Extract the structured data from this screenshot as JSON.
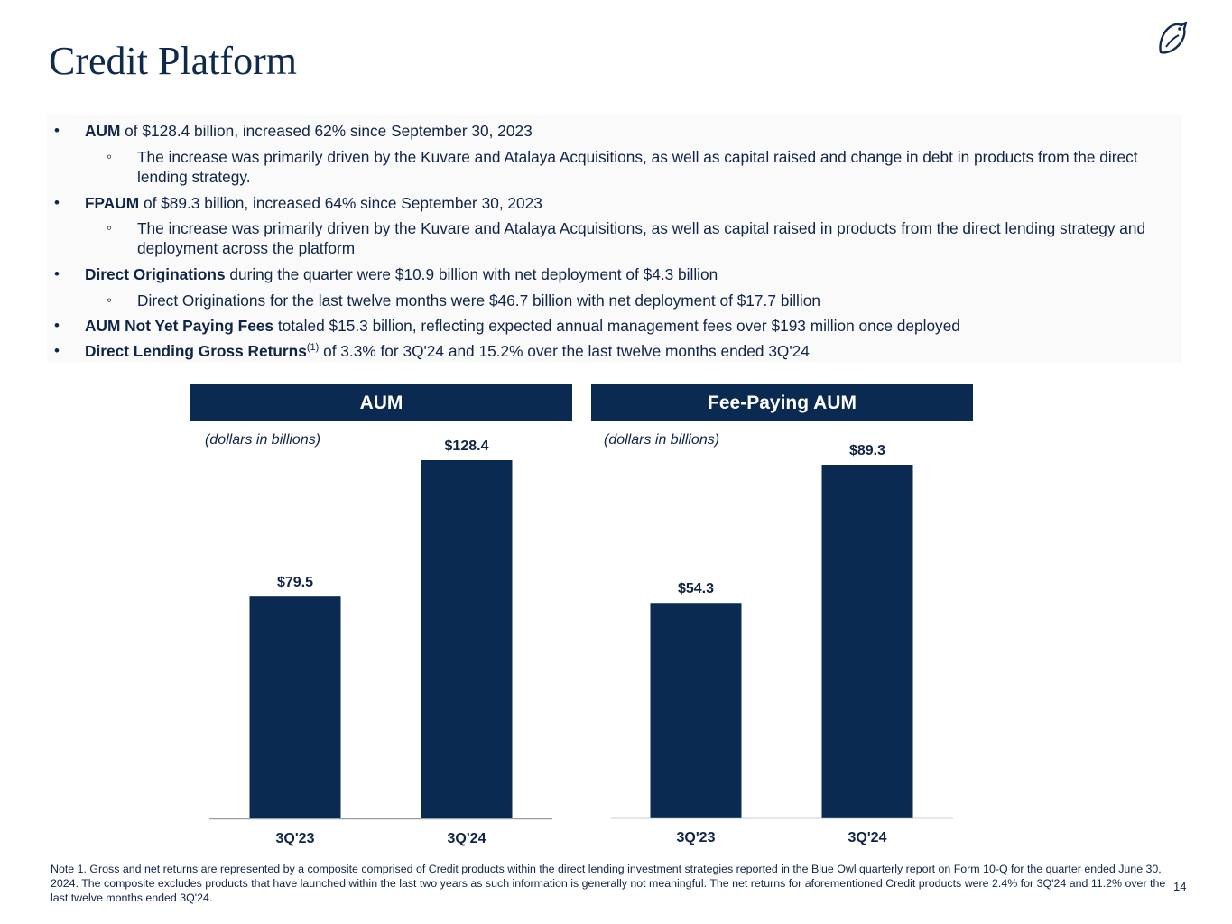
{
  "title": "Credit Platform",
  "bullets": [
    {
      "level": 1,
      "bold": "AUM",
      "text": " of $128.4 billion, increased 62% since September 30, 2023"
    },
    {
      "level": 2,
      "bold": "",
      "text": "The increase was primarily driven by the Kuvare and Atalaya Acquisitions, as well as capital raised and change in debt in products from the direct lending strategy."
    },
    {
      "level": 1,
      "bold": "FPAUM",
      "text": " of $89.3 billion, increased 64% since September 30, 2023"
    },
    {
      "level": 2,
      "bold": "",
      "text": "The increase was primarily driven by the Kuvare and Atalaya Acquisitions, as well as capital raised in products from the direct lending strategy and deployment across the platform"
    },
    {
      "level": 1,
      "bold": "Direct Originations",
      "text": " during the quarter were $10.9 billion with net deployment of $4.3 billion"
    },
    {
      "level": 2,
      "bold": "",
      "text": "Direct Originations for the last twelve months were $46.7 billion with net deployment of $17.7 billion"
    },
    {
      "level": 1,
      "bold": "AUM Not Yet Paying Fees",
      "text": " totaled $15.3 billion, reflecting expected annual management fees over $193 million once deployed"
    },
    {
      "level": 1,
      "bold": "Direct Lending Gross Returns",
      "sup": "(1)",
      "text": " of 3.3% for 3Q'24 and 15.2% over the last twelve months ended 3Q'24"
    }
  ],
  "bullet_glyphs": {
    "level1": "•",
    "level2": "◦"
  },
  "chart_data": [
    {
      "type": "bar",
      "title": "AUM",
      "subtitle": "(dollars in billions)",
      "categories": [
        "3Q'23",
        "3Q'24"
      ],
      "values": [
        79.5,
        128.4
      ],
      "labels": [
        "$79.5",
        "$128.4"
      ],
      "ylim": [
        0,
        128.4
      ],
      "color": "#0a2a52"
    },
    {
      "type": "bar",
      "title": "Fee-Paying AUM",
      "subtitle": "(dollars in billions)",
      "categories": [
        "3Q'23",
        "3Q'24"
      ],
      "values": [
        54.3,
        89.3
      ],
      "labels": [
        "$54.3",
        "$89.3"
      ],
      "ylim": [
        0,
        89.3
      ],
      "color": "#0a2a52"
    }
  ],
  "footnote": "Note 1. Gross and net returns are represented by a composite comprised of Credit products within the direct lending investment strategies reported in the Blue Owl quarterly report on Form 10-Q for the quarter ended June 30, 2024. The composite excludes products that have launched within the last two years as such information is generally not meaningful. The net returns for aforementioned Credit products were 2.4% for 3Q'24 and 11.2% over the last twelve months ended 3Q'24.",
  "page_number": "14",
  "colors": {
    "navy": "#0a2a52",
    "text": "#0f2447",
    "axis": "#9aa0a8"
  }
}
